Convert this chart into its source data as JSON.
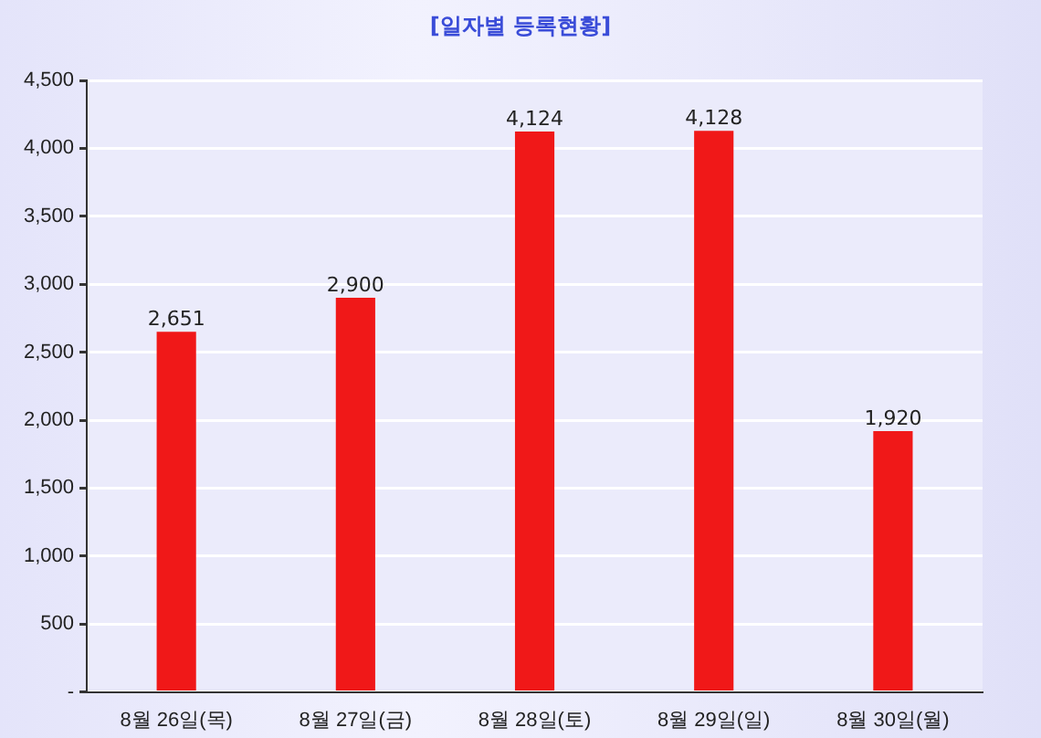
{
  "chart_data": {
    "type": "bar",
    "title": "[일자별 등록현황]",
    "categories": [
      "8월 26일(목)",
      "8월 27일(금)",
      "8월 28일(토)",
      "8월 29일(일)",
      "8월 30일(월)"
    ],
    "values": [
      2651,
      2900,
      4124,
      4128,
      1920
    ],
    "color": "#f01818",
    "value_labels": [
      "2,651",
      "2,900",
      "4,124",
      "4,128",
      "1,920"
    ],
    "ylim": [
      0,
      4500
    ],
    "yticks": [
      {
        "value": 0,
        "label": "-"
      },
      500,
      {
        "value": 1000,
        "label": "1,000"
      },
      {
        "value": 1500,
        "label": "1,500"
      },
      {
        "value": 2000,
        "label": "2,000"
      },
      {
        "value": 2500,
        "label": "2,500"
      },
      {
        "value": 3000,
        "label": "3,000"
      },
      {
        "value": 3500,
        "label": "3,500"
      },
      {
        "value": 4000,
        "label": "4,000"
      },
      {
        "value": 4500,
        "label": "4,500"
      }
    ],
    "grid": "y"
  }
}
